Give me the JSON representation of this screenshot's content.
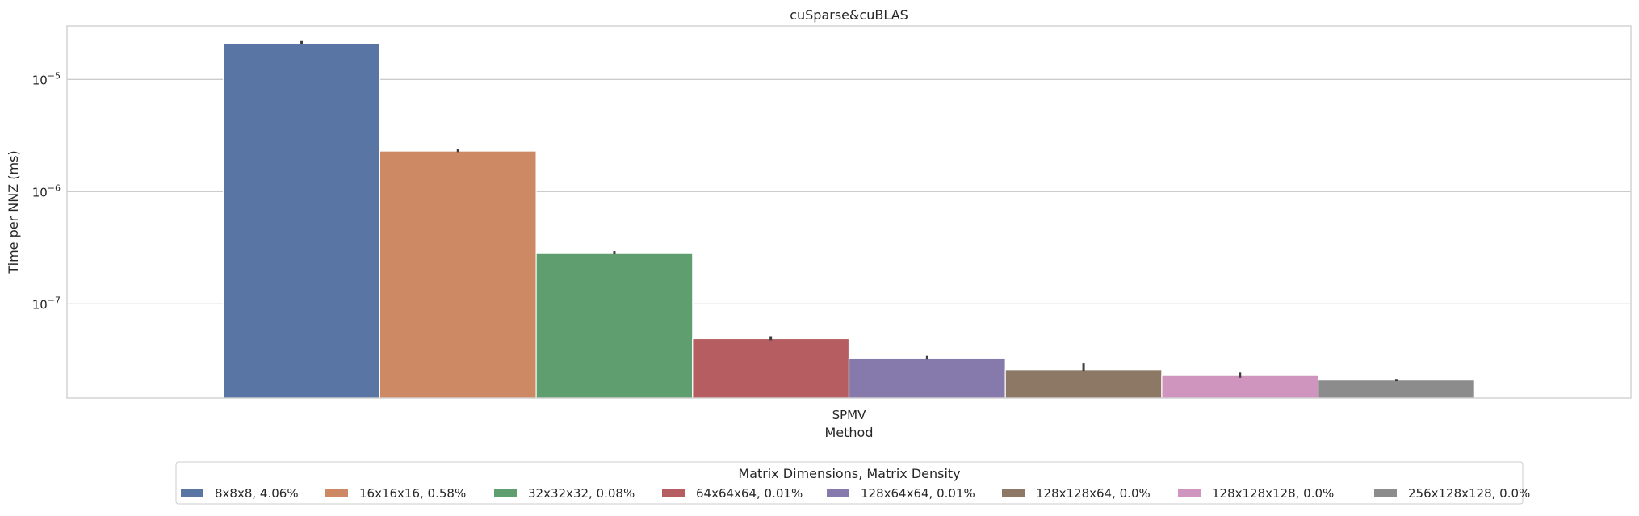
{
  "chart_data": {
    "type": "bar",
    "title": "cuSparse&cuBLAS",
    "xlabel": "Method",
    "ylabel": "Time per NNZ (ms)",
    "yscale": "log",
    "ylim": [
      1.45e-08,
      3e-05
    ],
    "yticks": [
      {
        "value": 1e-07,
        "base": "10",
        "exp": "−7"
      },
      {
        "value": 1e-06,
        "base": "10",
        "exp": "−6"
      },
      {
        "value": 1e-05,
        "base": "10",
        "exp": "−5"
      }
    ],
    "categories": [
      "SPMV"
    ],
    "grid": true,
    "legend": {
      "title": "Matrix Dimensions, Matrix Density",
      "placement": "bottom-center, below plot",
      "columns": 8
    },
    "series": [
      {
        "name": "8x8x8, 4.06%",
        "color": "#5875a4",
        "values": [
          2.1e-05
        ],
        "err": [
          2.05e-05,
          2.2e-05
        ]
      },
      {
        "name": "16x16x16, 0.58%",
        "color": "#cc8963",
        "values": [
          2.3e-06
        ],
        "err": [
          2.25e-06,
          2.38e-06
        ]
      },
      {
        "name": "32x32x32, 0.08%",
        "color": "#5f9e6e",
        "values": [
          2.85e-07
        ],
        "err": [
          2.78e-07,
          2.95e-07
        ]
      },
      {
        "name": "64x64x64, 0.01%",
        "color": "#b55d60",
        "values": [
          4.9e-08
        ],
        "err": [
          4.75e-08,
          5.15e-08
        ]
      },
      {
        "name": "128x64x64, 0.01%",
        "color": "#857aab",
        "values": [
          3.3e-08
        ],
        "err": [
          3.2e-08,
          3.45e-08
        ]
      },
      {
        "name": "128x128x64, 0.0%",
        "color": "#8d7866",
        "values": [
          2.6e-08
        ],
        "err": [
          2.5e-08,
          2.95e-08
        ]
      },
      {
        "name": "128x128x128, 0.0%",
        "color": "#d095bf",
        "values": [
          2.3e-08
        ],
        "err": [
          2.2e-08,
          2.45e-08
        ]
      },
      {
        "name": "256x128x128, 0.0%",
        "color": "#8c8c8c",
        "values": [
          2.1e-08
        ],
        "err": [
          2.05e-08,
          2.15e-08
        ]
      }
    ]
  }
}
